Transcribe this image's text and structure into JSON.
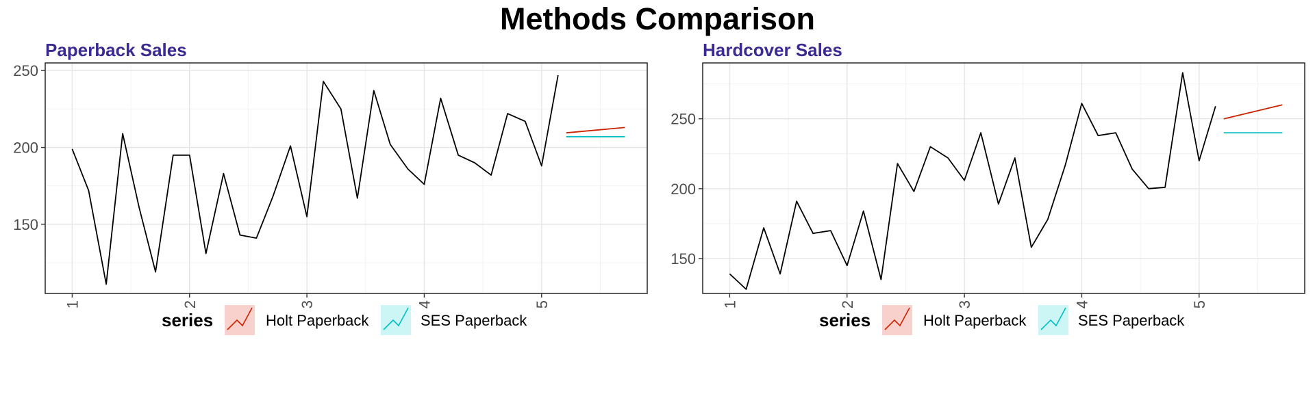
{
  "title": "Methods Comparison",
  "colors": {
    "holt": "#cc2200",
    "ses": "#00bfc4",
    "data": "#000000",
    "title": "#3b2a93"
  },
  "legend": {
    "title": "series",
    "items": [
      {
        "label": "Holt Paperback",
        "color": "#cc2200",
        "key_fill": "#f8d0cc"
      },
      {
        "label": "SES Paperback",
        "color": "#00bfc4",
        "key_fill": "#ccf5f6"
      }
    ]
  },
  "chart_data": [
    {
      "type": "line",
      "title": "Paperback Sales",
      "xlim": [
        0.77,
        5.9
      ],
      "ylim": [
        105,
        255
      ],
      "x_ticks": [
        1,
        2,
        3,
        4,
        5
      ],
      "y_ticks": [
        150,
        200,
        250
      ],
      "observed": {
        "x": [
          1.0,
          1.14,
          1.29,
          1.43,
          1.57,
          1.71,
          1.86,
          2.0,
          2.14,
          2.29,
          2.43,
          2.57,
          2.71,
          2.86,
          3.0,
          3.14,
          3.29,
          3.43,
          3.57,
          3.71,
          3.86,
          4.0,
          4.14,
          4.29,
          4.43,
          4.57,
          4.71,
          4.86,
          5.0,
          5.14
        ],
        "values": [
          199,
          172,
          111,
          209,
          161,
          119,
          195,
          195,
          131,
          183,
          143,
          141,
          168,
          201,
          155,
          243,
          225,
          167,
          237,
          202,
          186,
          176,
          232,
          195,
          190,
          182,
          222,
          217,
          188,
          247
        ]
      },
      "series": [
        {
          "name": "Holt Paperback",
          "x": [
            5.21,
            5.71
          ],
          "values": [
            209.5,
            213
          ]
        },
        {
          "name": "SES Paperback",
          "x": [
            5.21,
            5.71
          ],
          "values": [
            207,
            207
          ]
        }
      ]
    },
    {
      "type": "line",
      "title": "Hardcover Sales",
      "xlim": [
        0.77,
        5.9
      ],
      "ylim": [
        125,
        290
      ],
      "x_ticks": [
        1,
        2,
        3,
        4,
        5
      ],
      "y_ticks": [
        150,
        200,
        250
      ],
      "observed": {
        "x": [
          1.0,
          1.14,
          1.29,
          1.43,
          1.57,
          1.71,
          1.86,
          2.0,
          2.14,
          2.29,
          2.43,
          2.57,
          2.71,
          2.86,
          3.0,
          3.14,
          3.29,
          3.43,
          3.57,
          3.71,
          3.86,
          4.0,
          4.14,
          4.29,
          4.43,
          4.57,
          4.71,
          4.86,
          5.0,
          5.14
        ],
        "values": [
          139,
          128,
          172,
          139,
          191,
          168,
          170,
          145,
          184,
          135,
          218,
          198,
          230,
          222,
          206,
          240,
          189,
          222,
          158,
          178,
          217,
          261,
          238,
          240,
          214,
          200,
          201,
          283,
          220,
          259
        ]
      },
      "series": [
        {
          "name": "Holt Paperback",
          "x": [
            5.21,
            5.71
          ],
          "values": [
            250,
            260
          ]
        },
        {
          "name": "SES Paperback",
          "x": [
            5.21,
            5.71
          ],
          "values": [
            240,
            240
          ]
        }
      ]
    }
  ]
}
